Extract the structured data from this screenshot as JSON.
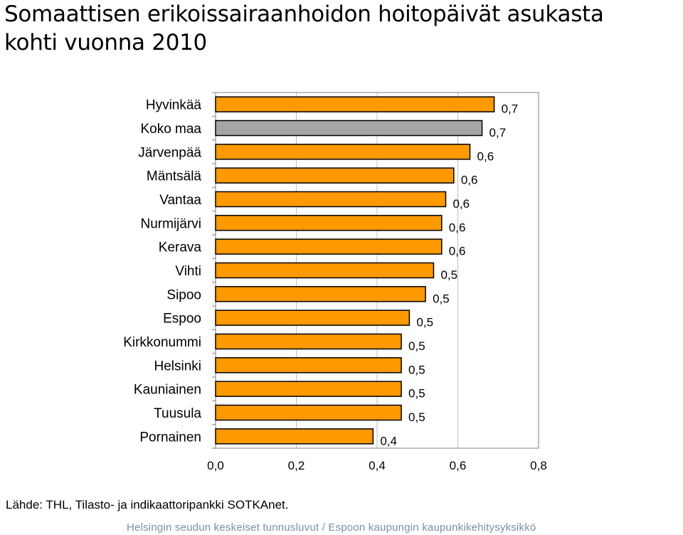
{
  "title": {
    "line1": "Somaattisen erikoissairaanhoidon hoitopäivät asukasta",
    "line2": "kohti vuonna 2010"
  },
  "colors": {
    "bar": "#ff9900",
    "highlight": "#a6a6a6",
    "bar_stroke": "#000000",
    "grid": "#c0c0c0",
    "footer": "#7a8fa8"
  },
  "chart_data": {
    "type": "bar",
    "orientation": "horizontal",
    "categories": [
      "Hyvinkää",
      "Koko maa",
      "Järvenpää",
      "Mäntsälä",
      "Vantaa",
      "Nurmijärvi",
      "Kerava",
      "Vihti",
      "Sipoo",
      "Espoo",
      "Kirkkonummi",
      "Helsinki",
      "Kauniainen",
      "Tuusula",
      "Pornainen"
    ],
    "values": [
      0.69,
      0.66,
      0.63,
      0.59,
      0.57,
      0.56,
      0.56,
      0.54,
      0.52,
      0.48,
      0.46,
      0.46,
      0.46,
      0.46,
      0.39
    ],
    "data_labels": [
      "0,7",
      "0,7",
      "0,6",
      "0,6",
      "0,6",
      "0,6",
      "0,6",
      "0,5",
      "0,5",
      "0,5",
      "0,5",
      "0,5",
      "0,5",
      "0,5",
      "0,4"
    ],
    "highlight_category": "Koko maa",
    "xlim": [
      0,
      0.8
    ],
    "xticks": [
      0,
      0.2,
      0.4,
      0.6,
      0.8
    ],
    "xtick_labels": [
      "0,0",
      "0,2",
      "0,4",
      "0,6",
      "0,8"
    ],
    "grid": true,
    "legend": false
  },
  "source": "Lähde: THL, Tilasto- ja indikaattoripankki SOTKAnet.",
  "footer": "Helsingin seudun keskeiset tunnusluvut / Espoon kaupungin kaupunkikehitysyksikkö"
}
